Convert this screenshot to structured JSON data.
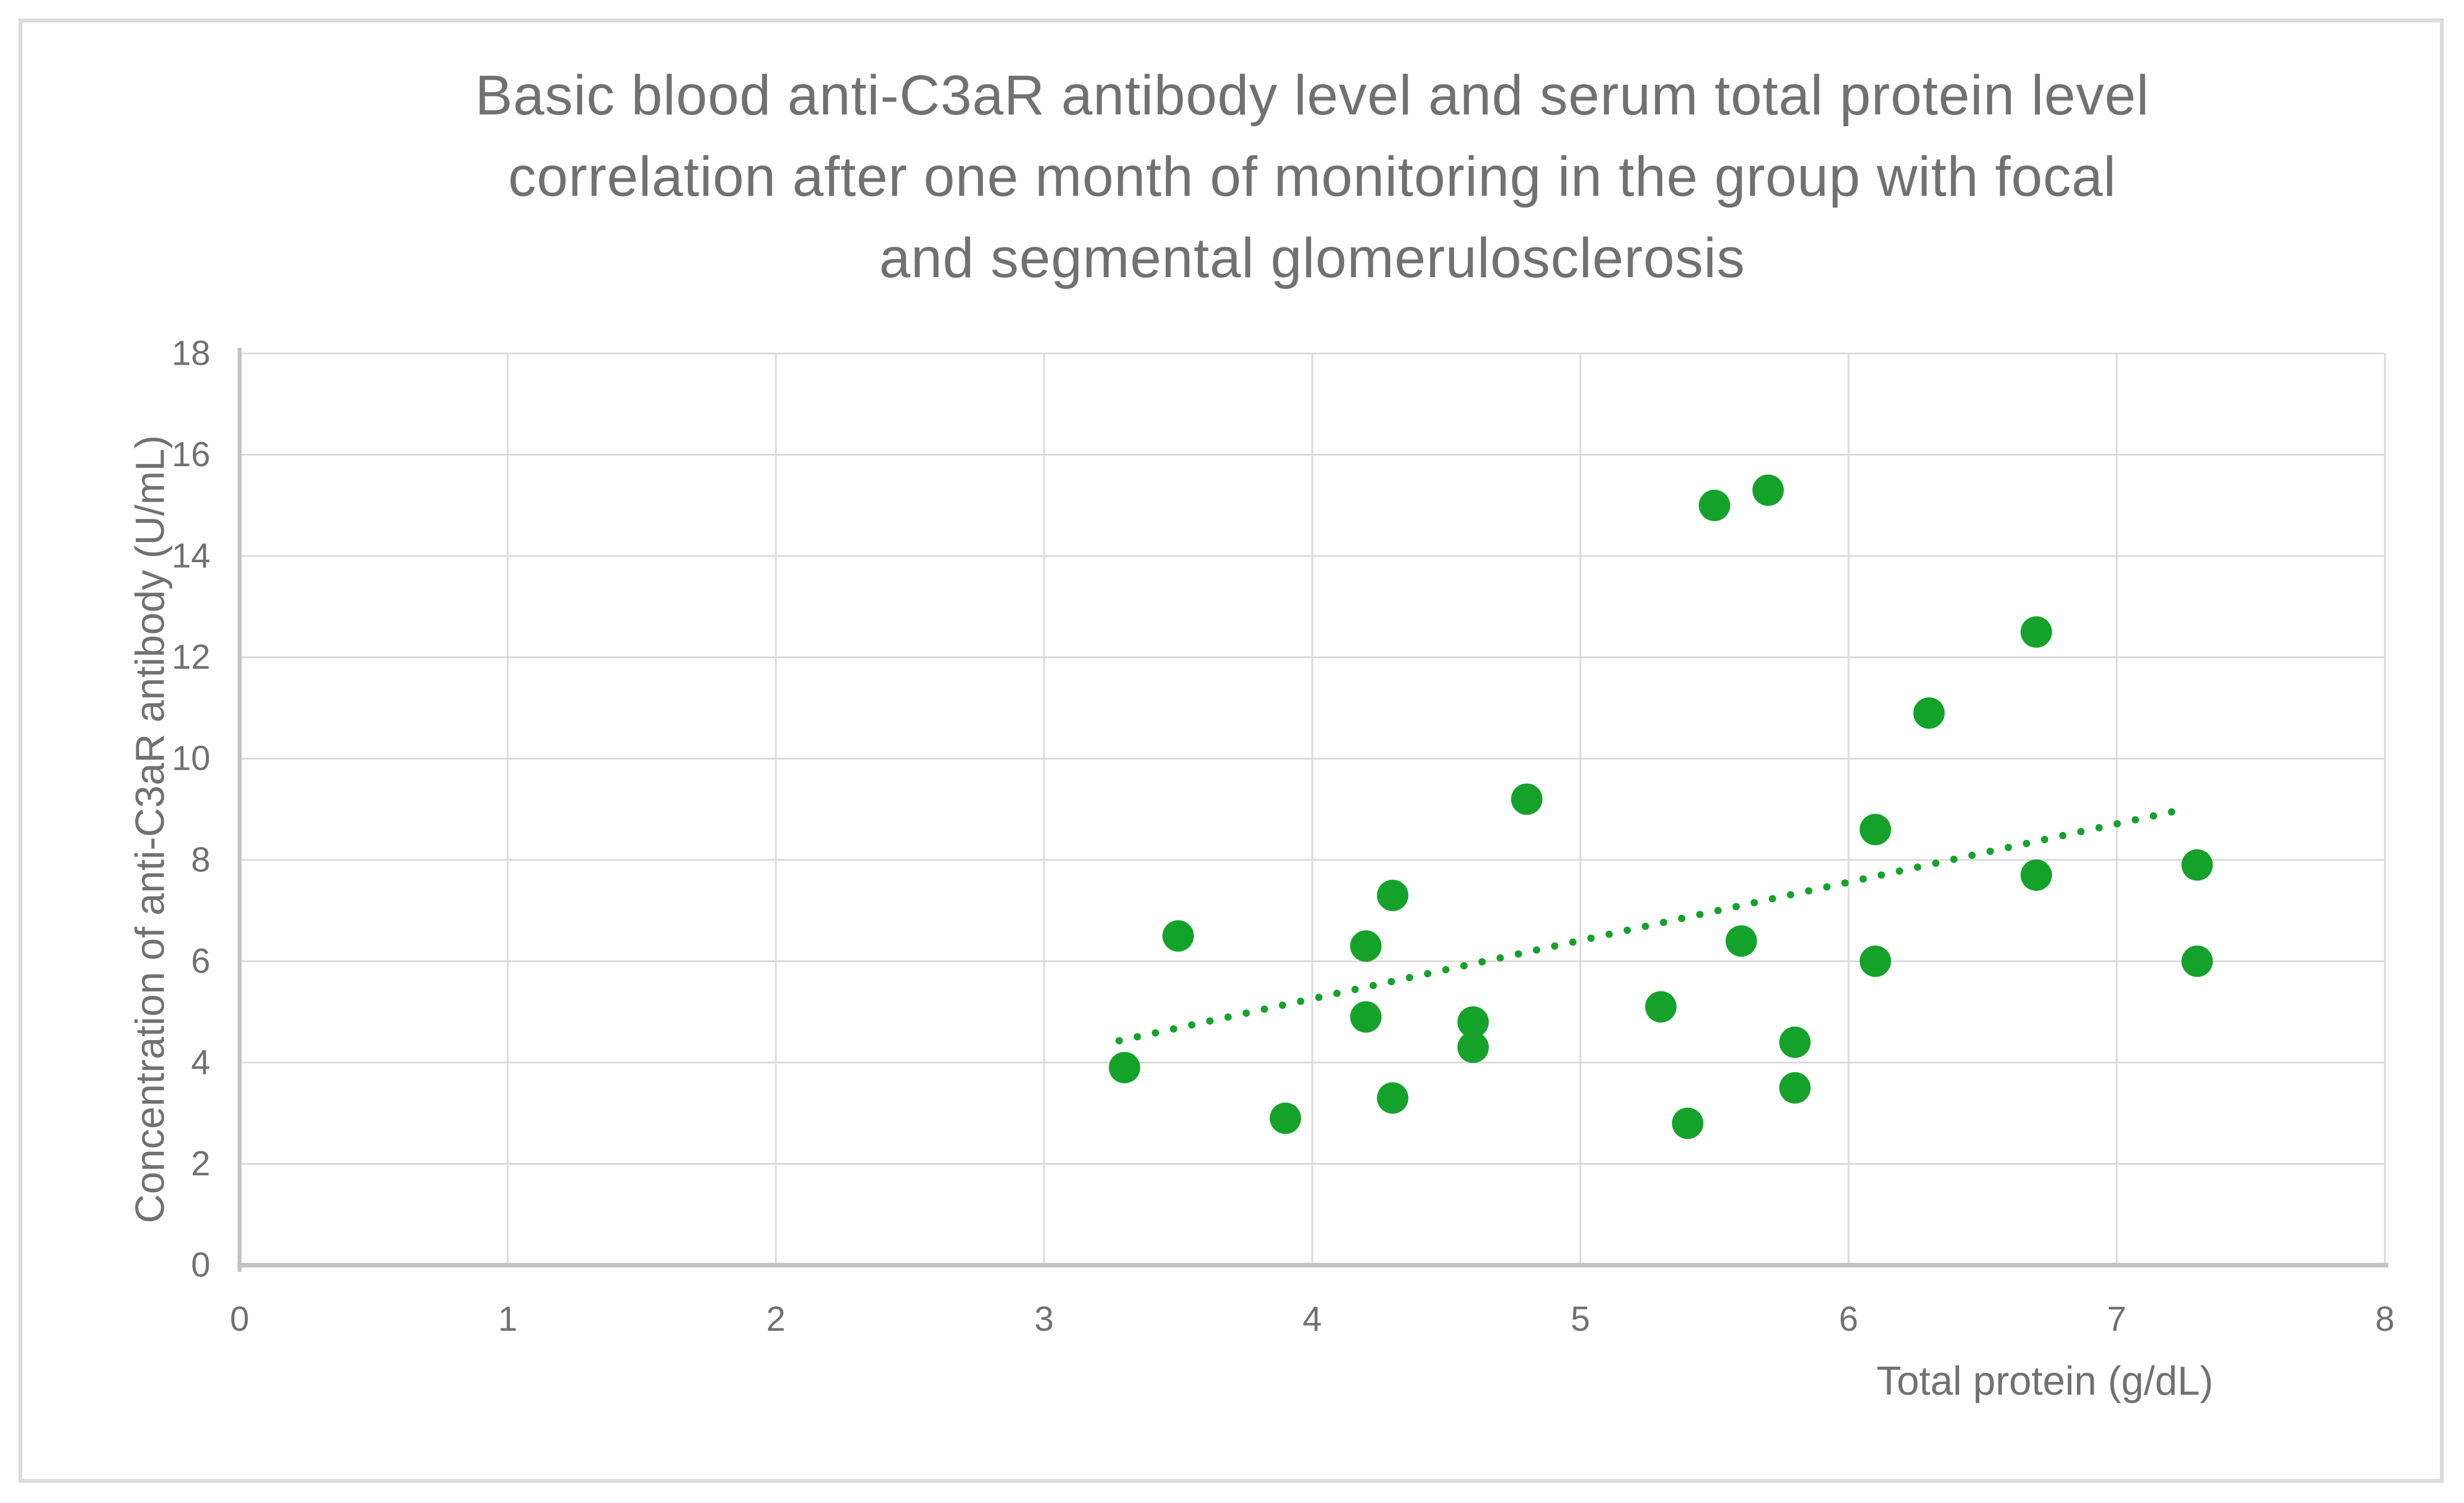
{
  "chart_data": {
    "type": "scatter",
    "title": "Basic blood anti-C3aR antibody level and serum total protein level correlation after one month of monitoring in the group with focal and segmental glomerulosclerosis",
    "title_lines": [
      "Basic blood anti-C3aR antibody level and serum total protein level",
      "correlation after one month of monitoring in the group with focal",
      "and segmental glomerulosclerosis"
    ],
    "xlabel": "Total protein (g/dL)",
    "ylabel": "Concentration of anti-C3aR antibody (U/mL)",
    "xlim": [
      0,
      8
    ],
    "ylim": [
      0,
      18
    ],
    "x_ticks": [
      0,
      1,
      2,
      3,
      4,
      5,
      6,
      7,
      8
    ],
    "y_ticks": [
      0,
      2,
      4,
      6,
      8,
      10,
      12,
      14,
      16,
      18
    ],
    "grid": true,
    "legend": "none",
    "points": [
      [
        3.3,
        3.9
      ],
      [
        3.5,
        6.5
      ],
      [
        3.9,
        2.9
      ],
      [
        4.2,
        6.3
      ],
      [
        4.2,
        4.9
      ],
      [
        4.3,
        7.3
      ],
      [
        4.3,
        3.3
      ],
      [
        4.6,
        4.8
      ],
      [
        4.6,
        4.3
      ],
      [
        4.8,
        9.2
      ],
      [
        5.3,
        5.1
      ],
      [
        5.4,
        2.8
      ],
      [
        5.5,
        15.0
      ],
      [
        5.6,
        6.4
      ],
      [
        5.7,
        15.3
      ],
      [
        5.8,
        4.4
      ],
      [
        5.8,
        3.5
      ],
      [
        6.1,
        8.6
      ],
      [
        6.1,
        6.0
      ],
      [
        6.3,
        10.9
      ],
      [
        6.7,
        12.5
      ],
      [
        6.7,
        7.7
      ],
      [
        7.3,
        7.9
      ],
      [
        7.3,
        6.0
      ]
    ],
    "trendline": {
      "style": "dotted",
      "x_start": 3.28,
      "y_start": 4.43,
      "x_end": 7.25,
      "y_end": 9.0
    },
    "colors": {
      "point": "#14a22b",
      "trend": "#14a22b",
      "grid": "#d9d9d9",
      "axis": "#c2c2c2",
      "text": "#717171",
      "border": "#dcdcdc",
      "background": "#ffffff"
    }
  }
}
